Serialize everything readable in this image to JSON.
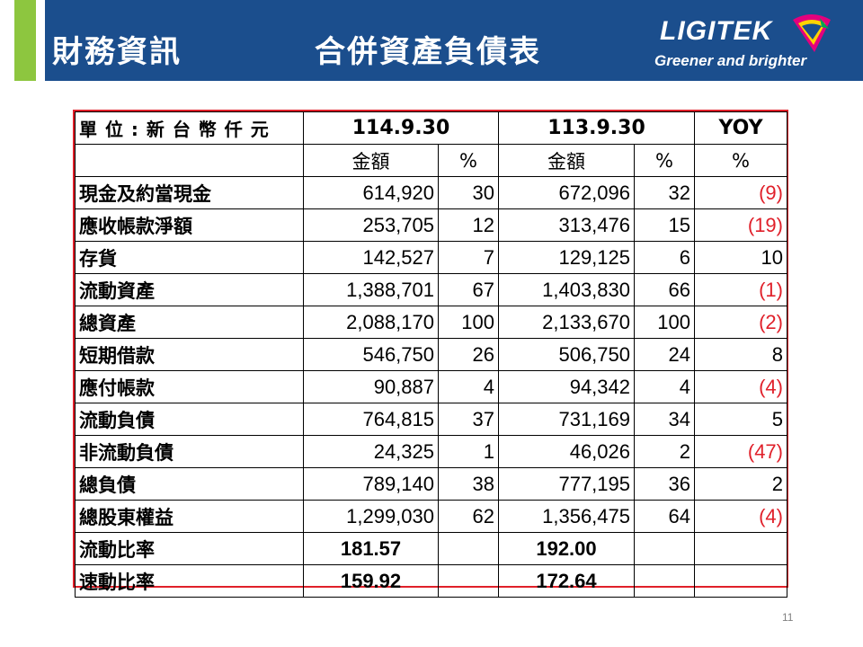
{
  "header": {
    "title_left": "財務資訊",
    "title_right": "合併資產負債表",
    "logo_name": "LIGITEK",
    "logo_tagline": "Greener and brighter"
  },
  "colors": {
    "header_bg": "#1b4e8d",
    "accent": "#8dc63f",
    "border_red": "#e0202a",
    "negative_red": "#e0202a"
  },
  "table": {
    "unit_label": "單 位 : 新 台 幣 仟 元",
    "period1": "114.9.30",
    "period2": "113.9.30",
    "yoy": "YOY",
    "sub_amount": "金額",
    "sub_pct": "%",
    "rows": [
      {
        "label": "現金及約當現金",
        "a1": "614,920",
        "p1": "30",
        "a2": "672,096",
        "p2": "32",
        "yoy": "(9)"
      },
      {
        "label": "應收帳款淨額",
        "a1": "253,705",
        "p1": "12",
        "a2": "313,476",
        "p2": "15",
        "yoy": "(19)"
      },
      {
        "label": "存貨",
        "a1": "142,527",
        "p1": "7",
        "a2": "129,125",
        "p2": "6",
        "yoy": "10"
      },
      {
        "label": "流動資產",
        "a1": "1,388,701",
        "p1": "67",
        "a2": "1,403,830",
        "p2": "66",
        "yoy": "(1)"
      },
      {
        "label": "總資產",
        "a1": "2,088,170",
        "p1": "100",
        "a2": "2,133,670",
        "p2": "100",
        "yoy": "(2)"
      },
      {
        "label": "短期借款",
        "a1": "546,750",
        "p1": "26",
        "a2": "506,750",
        "p2": "24",
        "yoy": "8"
      },
      {
        "label": "應付帳款",
        "a1": "90,887",
        "p1": "4",
        "a2": "94,342",
        "p2": "4",
        "yoy": "(4)"
      },
      {
        "label": "流動負債",
        "a1": "764,815",
        "p1": "37",
        "a2": "731,169",
        "p2": "34",
        "yoy": "5"
      },
      {
        "label": "非流動負債",
        "a1": "24,325",
        "p1": "1",
        "a2": "46,026",
        "p2": "2",
        "yoy": "(47)"
      },
      {
        "label": "總負債",
        "a1": "789,140",
        "p1": "38",
        "a2": "777,195",
        "p2": "36",
        "yoy": "2"
      },
      {
        "label": "總股東權益",
        "a1": "1,299,030",
        "p1": "62",
        "a2": "1,356,475",
        "p2": "64",
        "yoy": "(4)"
      }
    ],
    "ratios": [
      {
        "label": "流動比率",
        "v1": "181.57",
        "v2": "192.00"
      },
      {
        "label": "速動比率",
        "v1": "159.92",
        "v2": "172.64"
      }
    ]
  },
  "page_number": "11"
}
